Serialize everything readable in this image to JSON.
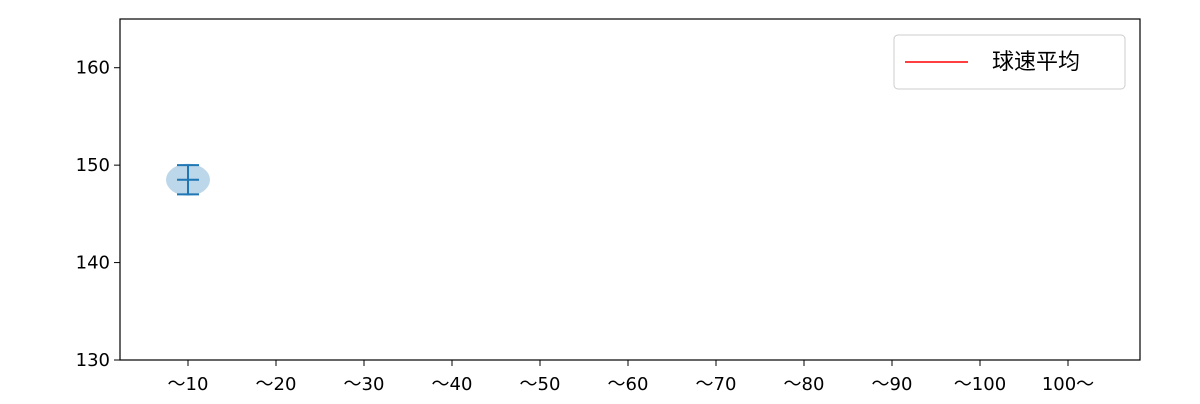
{
  "chart_data": {
    "type": "scatter",
    "categories": [
      "〜10",
      "〜20",
      "〜30",
      "〜40",
      "〜50",
      "〜60",
      "〜70",
      "〜80",
      "〜90",
      "〜100",
      "100〜"
    ],
    "points": [
      {
        "category": "〜10",
        "mean": 148.5,
        "error_low": 147.0,
        "error_high": 150.0
      }
    ],
    "ylim": [
      130,
      165
    ],
    "yticks": [
      130,
      140,
      150,
      160
    ],
    "grid": false,
    "legend": {
      "position": "top-right",
      "entries": [
        {
          "label": "球速平均",
          "color": "#ff0000"
        }
      ]
    },
    "colors": {
      "point": "#1f77b4",
      "point_fill": "#bcd6ea"
    }
  }
}
